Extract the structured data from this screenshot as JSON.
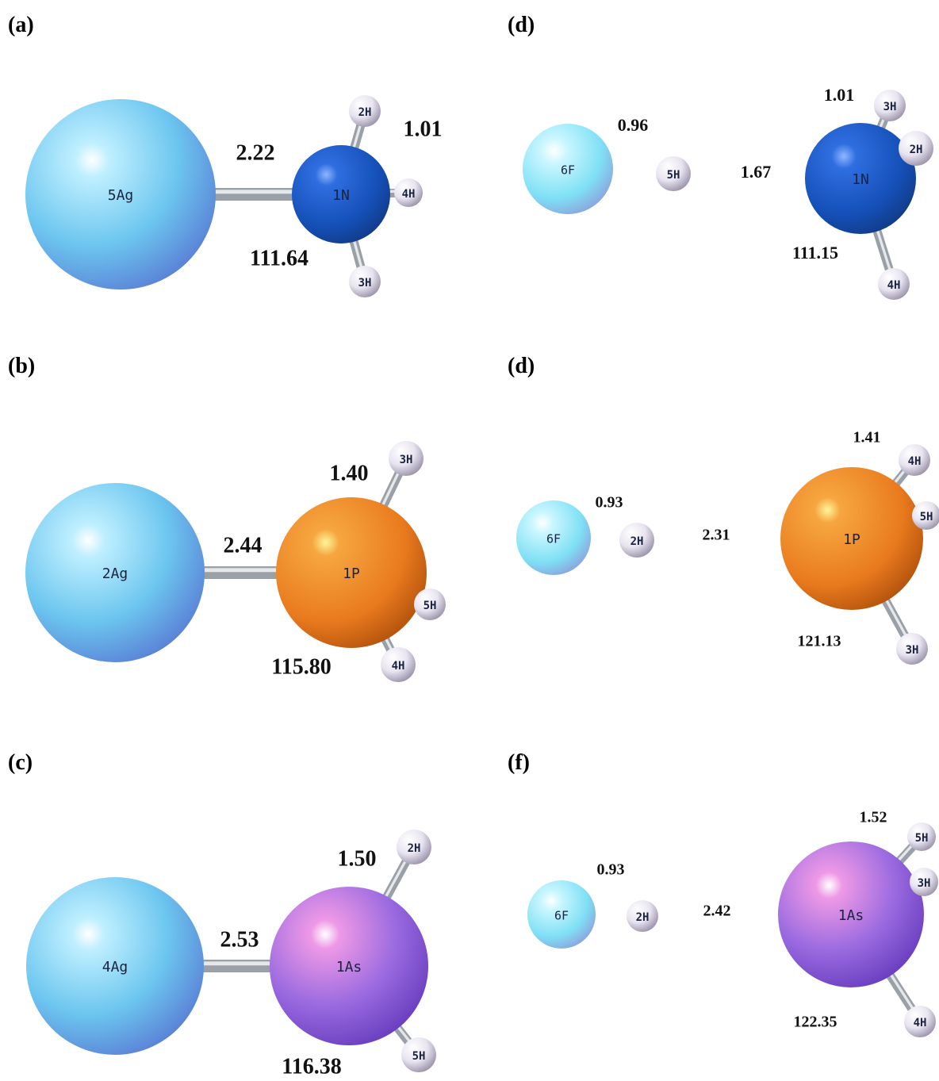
{
  "panels": [
    {
      "label": "(a)",
      "atoms": [
        "5Ag",
        "1N",
        "2H",
        "4H",
        "3H"
      ],
      "values": [
        "2.22",
        "1.01",
        "111.64"
      ]
    },
    {
      "label": "(d)",
      "atoms": [
        "6F",
        "5H",
        "1N",
        "3H",
        "2H",
        "4H"
      ],
      "values": [
        "0.96",
        "1.67",
        "1.01",
        "111.15"
      ]
    },
    {
      "label": "(b)",
      "atoms": [
        "2Ag",
        "1P",
        "3H",
        "5H",
        "4H"
      ],
      "values": [
        "2.44",
        "1.40",
        "115.80"
      ]
    },
    {
      "label": "(d)",
      "atoms": [
        "6F",
        "2H",
        "1P",
        "4H",
        "5H",
        "3H"
      ],
      "values": [
        "0.93",
        "2.31",
        "1.41",
        "121.13"
      ]
    },
    {
      "label": "(c)",
      "atoms": [
        "4Ag",
        "1As",
        "2H",
        "5H"
      ],
      "values": [
        "2.53",
        "1.50",
        "116.38"
      ]
    },
    {
      "label": "(f)",
      "atoms": [
        "6F",
        "2H",
        "1As",
        "5H",
        "3H",
        "4H"
      ],
      "values": [
        "0.93",
        "2.42",
        "1.52",
        "122.35"
      ]
    }
  ]
}
